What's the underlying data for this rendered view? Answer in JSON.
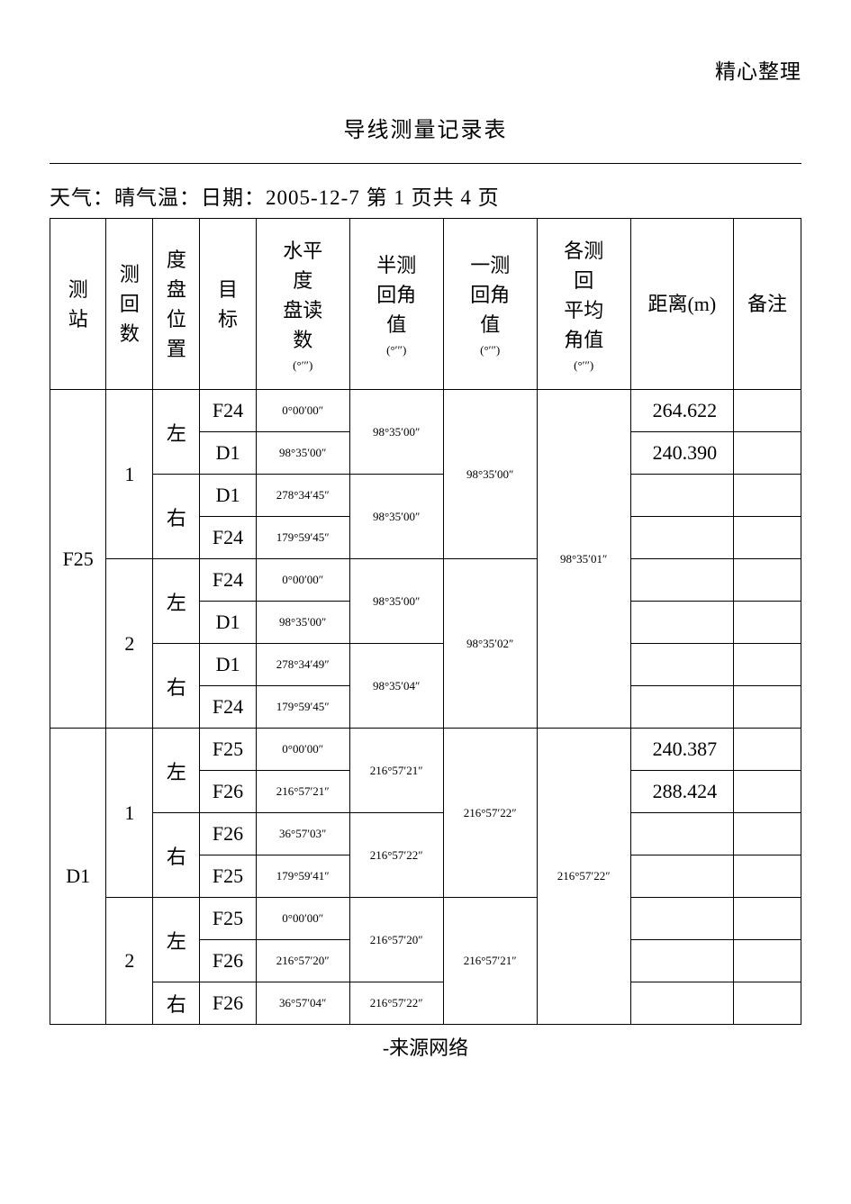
{
  "header_note": "精心整理",
  "title": "导线测量记录表",
  "meta": "天气：晴气温：日期：2005-12-7 第 1 页共 4 页",
  "footer": "-来源网络",
  "columns": {
    "station": "测\n站",
    "round": "测\n回\n数",
    "disk": "度\n盘\n位\n置",
    "target": "目\n标",
    "reading": "水平\n度\n盘读\n数",
    "reading_unit": "(°′″)",
    "half": "半测\n回角\n值",
    "half_unit": "(°′″)",
    "full": "一测\n回角\n值",
    "full_unit": "(°′″)",
    "avg": "各测\n回\n平均\n角值",
    "avg_unit": "(°′″)",
    "dist": "距离(m)",
    "remark": "备注"
  },
  "stations": [
    {
      "name": "F25",
      "avg": "98°35′01″",
      "rounds": [
        {
          "num": "1",
          "full": "98°35′00″",
          "disks": [
            {
              "pos": "左",
              "half": "98°35′00″",
              "rows": [
                {
                  "target": "F24",
                  "reading": "0°00′00″",
                  "dist": "264.622"
                },
                {
                  "target": "D1",
                  "reading": "98°35′00″",
                  "dist": "240.390"
                }
              ]
            },
            {
              "pos": "右",
              "half": "98°35′00″",
              "rows": [
                {
                  "target": "D1",
                  "reading": "278°34′45″",
                  "dist": ""
                },
                {
                  "target": "F24",
                  "reading": "179°59′45″",
                  "dist": ""
                }
              ]
            }
          ]
        },
        {
          "num": "2",
          "full": "98°35′02″",
          "disks": [
            {
              "pos": "左",
              "half": "98°35′00″",
              "rows": [
                {
                  "target": "F24",
                  "reading": "0°00′00″",
                  "dist": ""
                },
                {
                  "target": "D1",
                  "reading": "98°35′00″",
                  "dist": ""
                }
              ]
            },
            {
              "pos": "右",
              "half": "98°35′04″",
              "rows": [
                {
                  "target": "D1",
                  "reading": "278°34′49″",
                  "dist": ""
                },
                {
                  "target": "F24",
                  "reading": "179°59′45″",
                  "dist": ""
                }
              ]
            }
          ]
        }
      ]
    },
    {
      "name": "D1",
      "avg": "216°57′22″",
      "rounds": [
        {
          "num": "1",
          "full": "216°57′22″",
          "disks": [
            {
              "pos": "左",
              "half": "216°57′21″",
              "rows": [
                {
                  "target": "F25",
                  "reading": "0°00′00″",
                  "dist": "240.387"
                },
                {
                  "target": "F26",
                  "reading": "216°57′21″",
                  "dist": "288.424"
                }
              ]
            },
            {
              "pos": "右",
              "half": "216°57′22″",
              "rows": [
                {
                  "target": "F26",
                  "reading": "36°57′03″",
                  "dist": ""
                },
                {
                  "target": "F25",
                  "reading": "179°59′41″",
                  "dist": ""
                }
              ]
            }
          ]
        },
        {
          "num": "2",
          "full": "216°57′21″",
          "partial": true,
          "disks": [
            {
              "pos": "左",
              "half": "216°57′20″",
              "rows": [
                {
                  "target": "F25",
                  "reading": "0°00′00″",
                  "dist": ""
                },
                {
                  "target": "F26",
                  "reading": "216°57′20″",
                  "dist": ""
                }
              ]
            },
            {
              "pos": "右",
              "half": "216°57′22″",
              "partial": true,
              "rows": [
                {
                  "target": "F26",
                  "reading": "36°57′04″",
                  "dist": ""
                }
              ]
            }
          ]
        }
      ]
    }
  ]
}
